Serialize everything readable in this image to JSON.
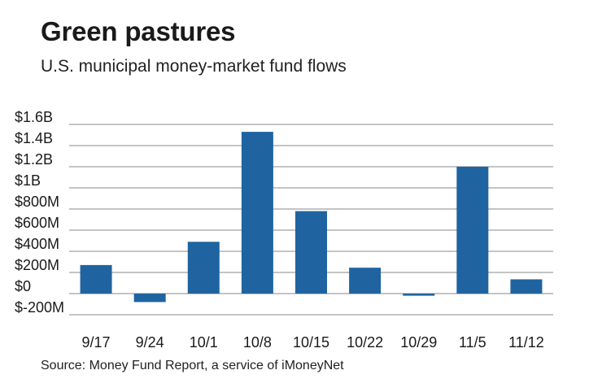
{
  "header": {
    "title": "Green pastures",
    "subtitle": "U.S. municipal money-market fund flows"
  },
  "footer": {
    "source": "Source: Money Fund Report, a service of iMoneyNet"
  },
  "colors": {
    "bar": "#1f64a0",
    "gridline": "#8a8a8a"
  },
  "chart_data": {
    "type": "bar",
    "title": "Green pastures",
    "subtitle": "U.S. municipal money-market fund flows",
    "xlabel": "",
    "ylabel": "",
    "unit": "USD",
    "categories": [
      "9/17",
      "9/24",
      "10/1",
      "10/8",
      "10/15",
      "10/22",
      "10/29",
      "11/5",
      "11/12"
    ],
    "values": [
      270000000,
      -80000000,
      490000000,
      1530000000,
      780000000,
      245000000,
      -20000000,
      1200000000,
      135000000
    ],
    "ylim": [
      -200000000,
      1600000000
    ],
    "yticks": [
      -200000000,
      0,
      200000000,
      400000000,
      600000000,
      800000000,
      1000000000,
      1200000000,
      1400000000,
      1600000000
    ],
    "ytick_labels": [
      "$-200M",
      "$0",
      "$200M",
      "$400M",
      "$600M",
      "$800M",
      "$1B",
      "$1.2B",
      "$1.4B",
      "$1.6B"
    ],
    "grid": true,
    "legend": "none"
  }
}
